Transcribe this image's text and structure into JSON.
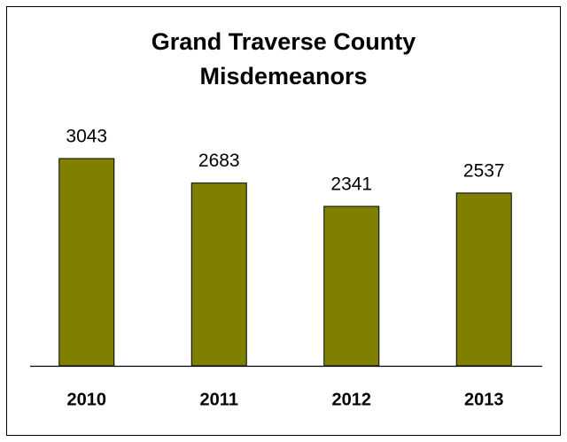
{
  "chart_data": {
    "type": "bar",
    "title": "Grand Traverse County Misdemeanors",
    "categories": [
      "2010",
      "2011",
      "2012",
      "2013"
    ],
    "values": [
      3043,
      2683,
      2341,
      2537
    ],
    "color": "#808000"
  }
}
